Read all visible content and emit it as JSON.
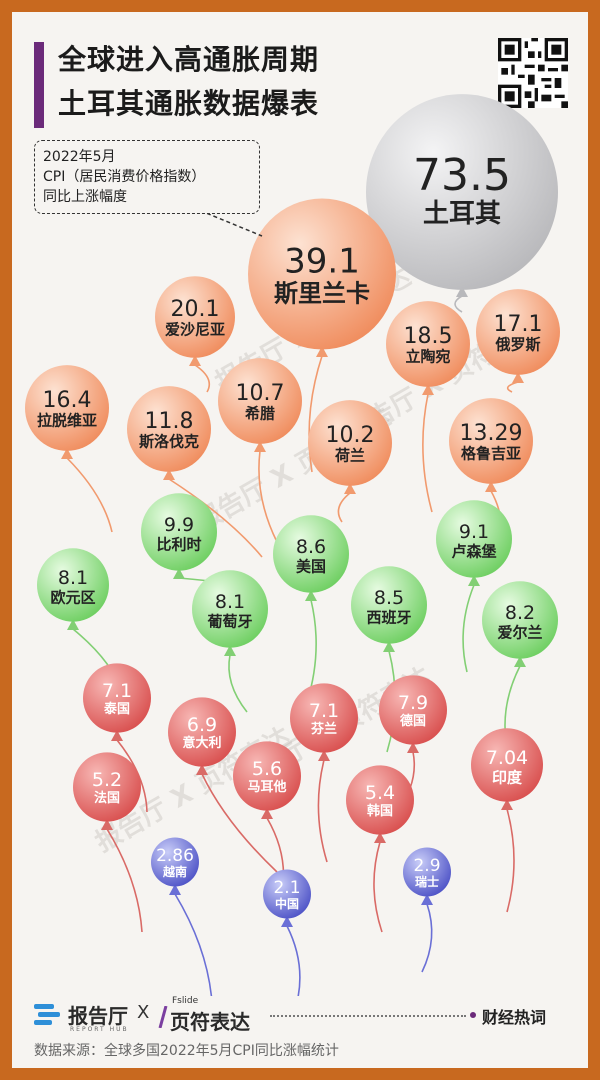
{
  "title": {
    "line1": "全球进入高通胀周期",
    "line2": "土耳其通胀数据爆表"
  },
  "note": {
    "line1": "2022年5月",
    "line2": "CPI（居民消费价格指数）",
    "line3": "同比上涨幅度"
  },
  "watermark": "报告厅 X 页符表达",
  "footer": {
    "brand1": "报告厅",
    "brand1_sub": "REPORT HUB",
    "separator": "X",
    "brand2_sub": "Fslide",
    "brand2": "页符表达",
    "tag": "财经热词",
    "source": "数据来源：全球多国2022年5月CPI同比涨幅统计"
  },
  "colors": {
    "gray": "#c9c9cb",
    "orange": "#f3a37a",
    "green": "#93de86",
    "red": "#e86a6a",
    "blue": "#6a6fd6"
  },
  "chart_data": {
    "type": "bubble",
    "title": "",
    "points": [
      {
        "country": "土耳其",
        "value": "73.5",
        "group": "gray"
      },
      {
        "country": "斯里兰卡",
        "value": "39.1",
        "group": "orange"
      },
      {
        "country": "爱沙尼亚",
        "value": "20.1",
        "group": "orange"
      },
      {
        "country": "立陶宛",
        "value": "18.5",
        "group": "orange"
      },
      {
        "country": "俄罗斯",
        "value": "17.1",
        "group": "orange"
      },
      {
        "country": "拉脱维亚",
        "value": "16.4",
        "group": "orange"
      },
      {
        "country": "格鲁吉亚",
        "value": "13.29",
        "group": "orange"
      },
      {
        "country": "斯洛伐克",
        "value": "11.8",
        "group": "orange"
      },
      {
        "country": "希腊",
        "value": "10.7",
        "group": "orange"
      },
      {
        "country": "荷兰",
        "value": "10.2",
        "group": "orange"
      },
      {
        "country": "比利时",
        "value": "9.9",
        "group": "green"
      },
      {
        "country": "卢森堡",
        "value": "9.1",
        "group": "green"
      },
      {
        "country": "美国",
        "value": "8.6",
        "group": "green"
      },
      {
        "country": "西班牙",
        "value": "8.5",
        "group": "green"
      },
      {
        "country": "欧元区",
        "value": "8.1",
        "group": "green"
      },
      {
        "country": "葡萄牙",
        "value": "8.1",
        "group": "green"
      },
      {
        "country": "爱尔兰",
        "value": "8.2",
        "group": "green"
      },
      {
        "country": "泰国",
        "value": "7.1",
        "group": "red"
      },
      {
        "country": "芬兰",
        "value": "7.1",
        "group": "red"
      },
      {
        "country": "德国",
        "value": "7.9",
        "group": "red"
      },
      {
        "country": "意大利",
        "value": "6.9",
        "group": "red"
      },
      {
        "country": "印度",
        "value": "7.04",
        "group": "red"
      },
      {
        "country": "马耳他",
        "value": "5.6",
        "group": "red"
      },
      {
        "country": "韩国",
        "value": "5.4",
        "group": "red"
      },
      {
        "country": "法国",
        "value": "5.2",
        "group": "red"
      },
      {
        "country": "越南",
        "value": "2.86",
        "group": "blue"
      },
      {
        "country": "瑞士",
        "value": "2.9",
        "group": "blue"
      },
      {
        "country": "中国",
        "value": "2.1",
        "group": "blue"
      }
    ]
  }
}
